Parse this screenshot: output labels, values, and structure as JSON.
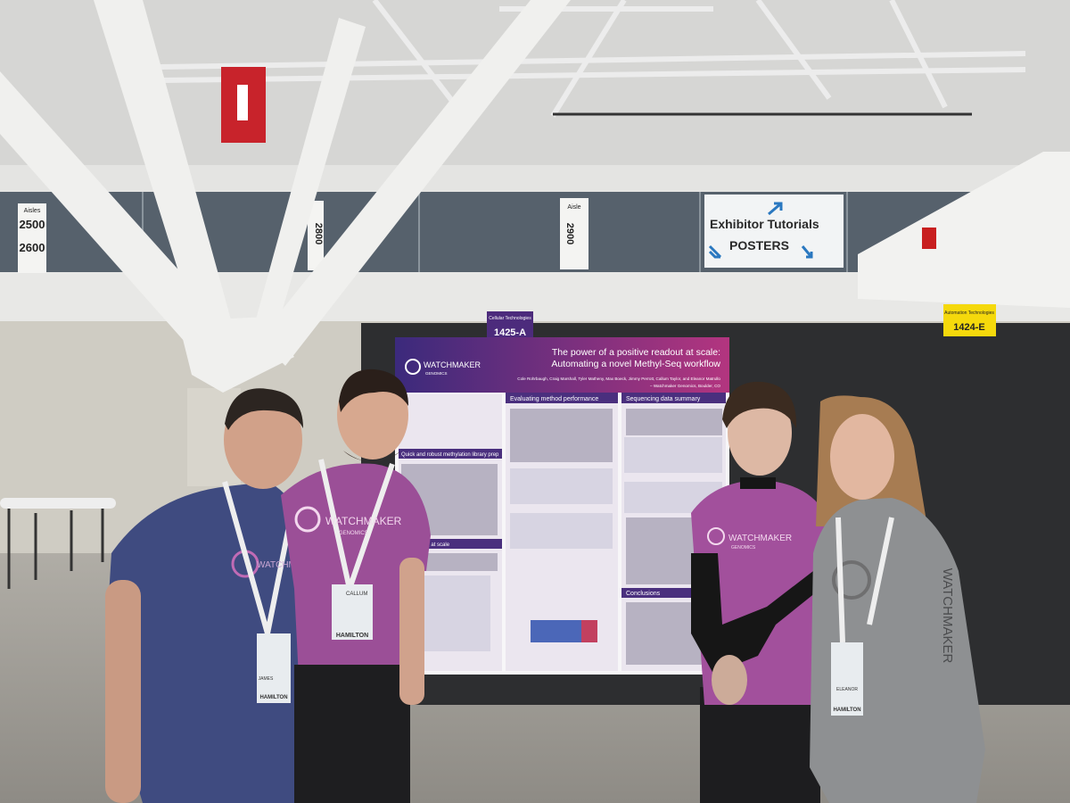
{
  "signs": {
    "aisles_left": {
      "label": "Aisles",
      "numbers": [
        "2500",
        "2600"
      ]
    },
    "aisle_mid": {
      "number": "2800"
    },
    "aisle_right": {
      "label": "Aisle",
      "number": "2900"
    },
    "wayfinding": {
      "line1": "Exhibitor Tutorials",
      "line2": "POSTERS"
    },
    "booth_a": {
      "category": "Cellular Technologies",
      "number": "1425-A"
    },
    "booth_e": {
      "category": "Automation Technologies",
      "number": "1424-E"
    }
  },
  "poster": {
    "logo": "WATCHMAKER",
    "logo_sub": "GENOMICS",
    "title": [
      "The power of a positive readout at scale:",
      "Automating a novel Methyl-Seq workflow"
    ],
    "authors": "Cole Rohrbaugh, Craig Marshall, Tyler Matheny, Max Boeck, Jimmy Perrott, Callum Taylor, and Eleanor Matrullo",
    "affiliation": "– Watchmaker Genomics, Boulder, CO",
    "sections": [
      "Evaluating method performance",
      "Sequencing data summary",
      "Quick and robust methylation library prep",
      "Sequencing at scale",
      "Conclusions"
    ]
  },
  "shirts": {
    "brand": "WATCHMAKER",
    "brand_sub": "GENOMICS"
  },
  "badges": {
    "sponsor": "HAMILTON",
    "names": [
      "JAMES",
      "CALLUM",
      "ELEANOR"
    ]
  }
}
